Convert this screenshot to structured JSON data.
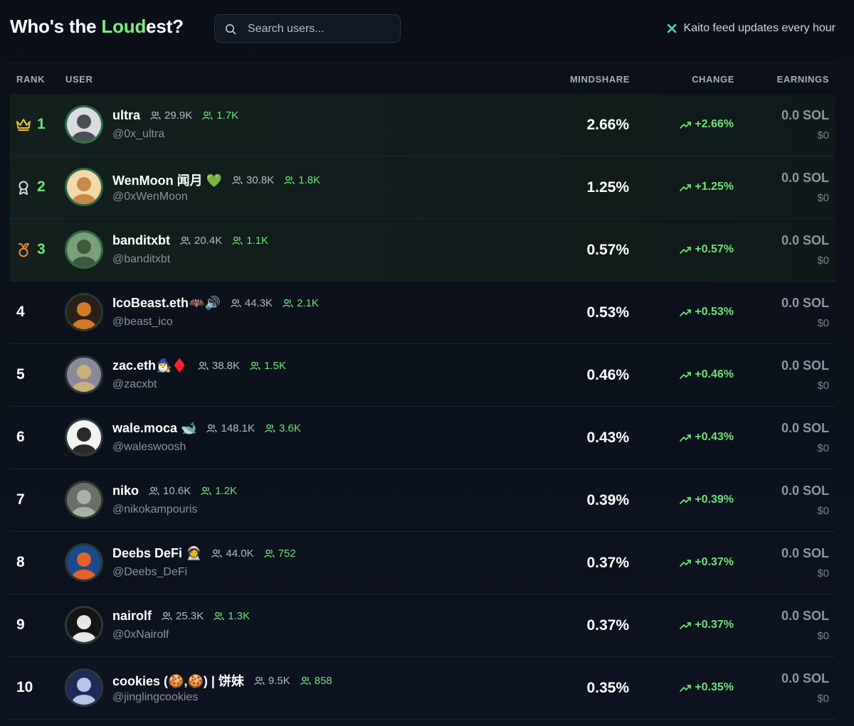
{
  "header": {
    "title_prefix": "Who's the ",
    "title_accent": "Loud",
    "title_suffix": "est?",
    "search_placeholder": "Search users...",
    "kaito_text": "Kaito feed updates every hour"
  },
  "columns": {
    "rank": "RANK",
    "user": "USER",
    "mindshare": "MINDSHARE",
    "change": "CHANGE",
    "earnings": "EARNINGS"
  },
  "colors": {
    "accent": "#7bee7e",
    "positive": "#6ee27a",
    "gold": "#f2c230",
    "bronze": "#f08a2e"
  },
  "rows": [
    {
      "rank": "1",
      "rank_icon": "crown-icon",
      "name": "ultra",
      "followers": "29.9K",
      "smart_followers": "1.7K",
      "handle": "@0x_ultra",
      "mindshare": "2.66%",
      "change": "+2.66%",
      "earnings_sol": "0.0 SOL",
      "earnings_usd": "$0"
    },
    {
      "rank": "2",
      "rank_icon": "medal-icon",
      "name": "WenMoon 闻月 💚",
      "followers": "30.8K",
      "smart_followers": "1.8K",
      "handle": "@0xWenMoon",
      "mindshare": "1.25%",
      "change": "+1.25%",
      "earnings_sol": "0.0 SOL",
      "earnings_usd": "$0"
    },
    {
      "rank": "3",
      "rank_icon": "bronze-badge-icon",
      "name": "banditxbt",
      "followers": "20.4K",
      "smart_followers": "1.1K",
      "handle": "@banditxbt",
      "mindshare": "0.57%",
      "change": "+0.57%",
      "earnings_sol": "0.0 SOL",
      "earnings_usd": "$0"
    },
    {
      "rank": "4",
      "name": "IcoBeast.eth🦇🔊",
      "followers": "44.3K",
      "smart_followers": "2.1K",
      "handle": "@beast_ico",
      "mindshare": "0.53%",
      "change": "+0.53%",
      "earnings_sol": "0.0 SOL",
      "earnings_usd": "$0"
    },
    {
      "rank": "5",
      "name": "zac.eth🧙‍♂️♦️",
      "followers": "38.8K",
      "smart_followers": "1.5K",
      "handle": "@zacxbt",
      "mindshare": "0.46%",
      "change": "+0.46%",
      "earnings_sol": "0.0 SOL",
      "earnings_usd": "$0"
    },
    {
      "rank": "6",
      "name": "wale.moca 🐋",
      "followers": "148.1K",
      "smart_followers": "3.6K",
      "handle": "@waleswoosh",
      "mindshare": "0.43%",
      "change": "+0.43%",
      "earnings_sol": "0.0 SOL",
      "earnings_usd": "$0"
    },
    {
      "rank": "7",
      "name": "niko",
      "followers": "10.6K",
      "smart_followers": "1.2K",
      "handle": "@nikokampouris",
      "mindshare": "0.39%",
      "change": "+0.39%",
      "earnings_sol": "0.0 SOL",
      "earnings_usd": "$0"
    },
    {
      "rank": "8",
      "name": "Deebs DeFi 🧑‍🚀",
      "followers": "44.0K",
      "smart_followers": "752",
      "handle": "@Deebs_DeFi",
      "mindshare": "0.37%",
      "change": "+0.37%",
      "earnings_sol": "0.0 SOL",
      "earnings_usd": "$0"
    },
    {
      "rank": "9",
      "name": "nairolf",
      "followers": "25.3K",
      "smart_followers": "1.3K",
      "handle": "@0xNairolf",
      "mindshare": "0.37%",
      "change": "+0.37%",
      "earnings_sol": "0.0 SOL",
      "earnings_usd": "$0"
    },
    {
      "rank": "10",
      "name": "cookies (🍪,🍪) | 饼妹",
      "followers": "9.5K",
      "smart_followers": "858",
      "handle": "@jinglingcookies",
      "mindshare": "0.35%",
      "change": "+0.35%",
      "earnings_sol": "0.0 SOL",
      "earnings_usd": "$0"
    }
  ]
}
